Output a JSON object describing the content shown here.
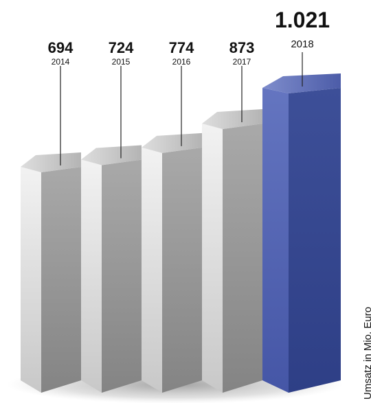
{
  "chart_data": {
    "type": "bar",
    "style": "3d",
    "categories": [
      "2014",
      "2015",
      "2016",
      "2017",
      "2018"
    ],
    "values": [
      694,
      724,
      774,
      873,
      1021
    ],
    "value_labels": [
      "694",
      "724",
      "774",
      "873",
      "1.021"
    ],
    "unit_label": "Umsatz in Mio. Euro",
    "grid": false,
    "legend": "none",
    "highlight_index": 4,
    "colors": {
      "bar": "#a6a6a6",
      "highlight": "#3b4f9c"
    }
  }
}
